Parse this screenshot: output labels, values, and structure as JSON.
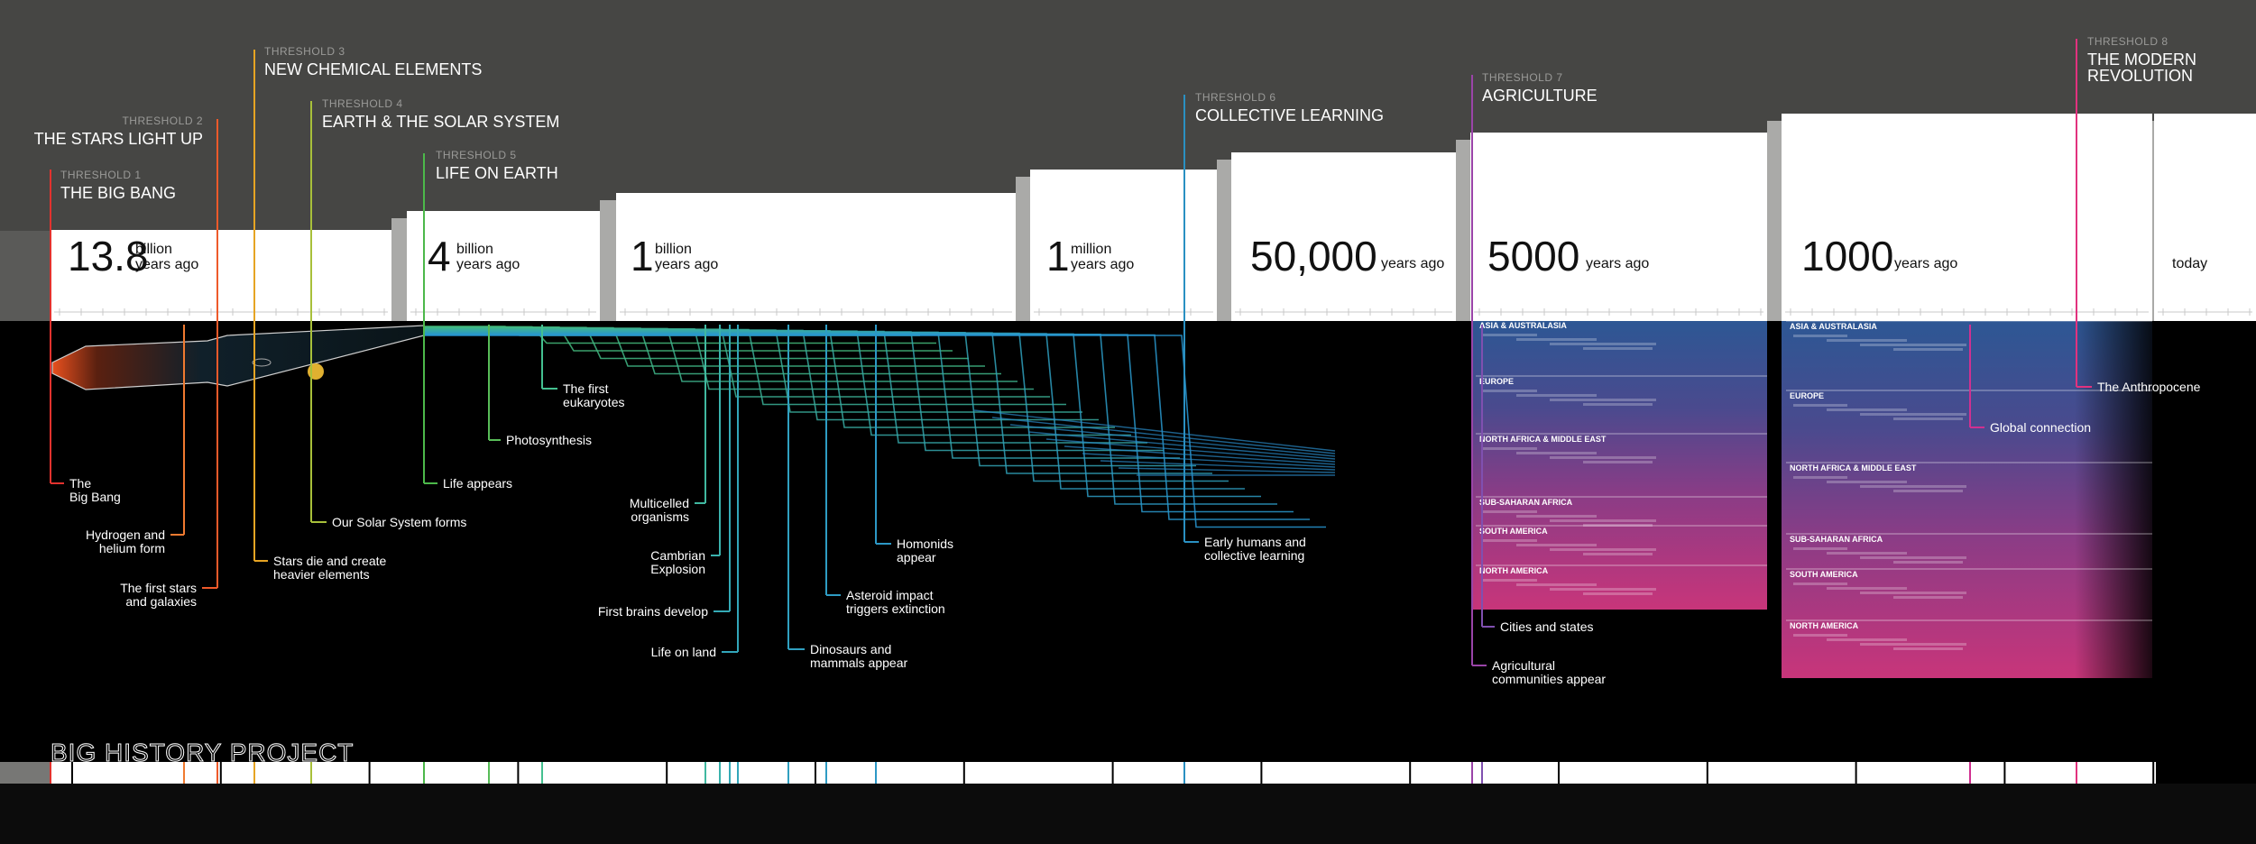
{
  "brand": "BIG HISTORY PROJECT",
  "thresholds": [
    {
      "label": "THRESHOLD 1",
      "title": [
        "THE BIG BANG"
      ],
      "color": "#e2322e"
    },
    {
      "label": "THRESHOLD 2",
      "title": [
        "THE STARS LIGHT UP"
      ],
      "color": "#ee5a2a"
    },
    {
      "label": "THRESHOLD 3",
      "title": [
        "NEW CHEMICAL ELEMENTS"
      ],
      "color": "#e6a423"
    },
    {
      "label": "THRESHOLD 4",
      "title": [
        "EARTH & THE SOLAR SYSTEM"
      ],
      "color": "#a8c03a"
    },
    {
      "label": "THRESHOLD 5",
      "title": [
        "LIFE ON EARTH"
      ],
      "color": "#4cb84a"
    },
    {
      "label": "THRESHOLD 6",
      "title": [
        "COLLECTIVE LEARNING"
      ],
      "color": "#2a90c2"
    },
    {
      "label": "THRESHOLD 7",
      "title": [
        "AGRICULTURE"
      ],
      "color": "#9a44a8"
    },
    {
      "label": "THRESHOLD 8",
      "title": [
        "THE MODERN",
        "REVOLUTION"
      ],
      "color": "#e2327e"
    }
  ],
  "eras": [
    {
      "amount": "13.8",
      "unit": [
        "billion",
        "years ago"
      ]
    },
    {
      "amount": "4",
      "unit": [
        "billion",
        "years ago"
      ]
    },
    {
      "amount": "1",
      "unit": [
        "billion",
        "years ago"
      ]
    },
    {
      "amount": "1",
      "unit": [
        "million",
        "years ago"
      ]
    },
    {
      "amount": "50,000",
      "unit": [
        "years ago"
      ]
    },
    {
      "amount": "5000",
      "unit": [
        "years ago"
      ]
    },
    {
      "amount": "1000",
      "unit": [
        "years ago"
      ]
    },
    {
      "unit": [
        "today"
      ]
    }
  ],
  "events": [
    {
      "lines": [
        "The",
        "Big Bang"
      ],
      "color": "#e2322e"
    },
    {
      "lines": [
        "Hydrogen and",
        "helium form"
      ],
      "color": "#f07a30"
    },
    {
      "lines": [
        "The first stars",
        "and galaxies"
      ],
      "color": "#ee5a2a"
    },
    {
      "lines": [
        "Stars die and create",
        "heavier elements"
      ],
      "color": "#e6a423"
    },
    {
      "lines": [
        "Our Solar System forms"
      ],
      "color": "#a8c03a"
    },
    {
      "lines": [
        "Life appears"
      ],
      "color": "#4cb84a"
    },
    {
      "lines": [
        "Photosynthesis"
      ],
      "color": "#58bc58"
    },
    {
      "lines": [
        "The first",
        "eukaryotes"
      ],
      "color": "#44c090"
    },
    {
      "lines": [
        "Multicelled",
        "organisms"
      ],
      "color": "#40b8a0"
    },
    {
      "lines": [
        "Cambrian",
        "Explosion"
      ],
      "color": "#3ab2ac"
    },
    {
      "lines": [
        "First brains develop"
      ],
      "color": "#34aab6"
    },
    {
      "lines": [
        "Life on land"
      ],
      "color": "#32a6ba"
    },
    {
      "lines": [
        "Dinosaurs and",
        "mammals appear"
      ],
      "color": "#30a0c0"
    },
    {
      "lines": [
        "Asteroid impact",
        "triggers extinction"
      ],
      "color": "#2e9cc4"
    },
    {
      "lines": [
        "Homonids",
        "appear"
      ],
      "color": "#2c98c6"
    },
    {
      "lines": [
        "Early humans and",
        "collective learning"
      ],
      "color": "#2a90c2"
    },
    {
      "lines": [
        "Cities and states"
      ],
      "color": "#8050b0"
    },
    {
      "lines": [
        "Agricultural",
        "communities appear"
      ],
      "color": "#9a44a8"
    },
    {
      "lines": [
        "Global connection"
      ],
      "color": "#d03090"
    },
    {
      "lines": [
        "The Anthropocene"
      ],
      "color": "#e2327e"
    }
  ],
  "regions": [
    "ASIA & AUSTRALASIA",
    "EUROPE",
    "NORTH AFRICA & MIDDLE EAST",
    "SUB-SAHARAN AFRICA",
    "SOUTH AMERICA",
    "NORTH AMERICA"
  ]
}
